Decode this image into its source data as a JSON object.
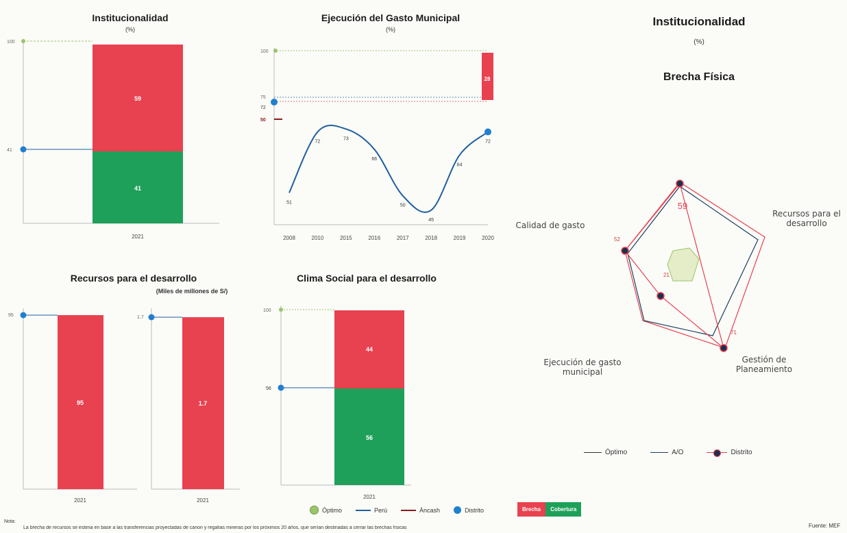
{
  "panel1": {
    "title": "Institucionalidad",
    "subtitle": "(%)",
    "brecha": 59,
    "cobertura": 41,
    "max_tick": "100",
    "distrito_tick": "41",
    "year": "2021"
  },
  "panel2": {
    "title": "Ejecución del Gasto Municipal",
    "subtitle": "(%)",
    "brecha": 28,
    "tick_max": "100",
    "tick_peru": "75",
    "tick_distrito": "72",
    "tick_ancash": "50"
  },
  "panel3": {
    "title": "Recursos para el desarrollo",
    "subtitle": "(Miles de millones de S/)",
    "left": {
      "value_label": "95",
      "tick": "95",
      "year": "2021"
    },
    "right": {
      "value_label": "1.7",
      "tick": "1.7",
      "year": "2021"
    }
  },
  "panel4": {
    "title": "Clima Social para el desarrollo",
    "brecha": 44,
    "cobertura": 56,
    "tick_max": "100",
    "tick_distrito": "56",
    "year": "2021"
  },
  "right_panel": {
    "title": "Institucionalidad",
    "subtitle": "(%)",
    "heading": "Brecha Física"
  },
  "radar": {
    "labels": {
      "top_value": "59",
      "recursos": "Recursos para el\ndesarrollo",
      "calidad": "Calidad de gasto",
      "gestion": "Gestión de\nPlaneamiento",
      "ejecucion": "Ejecución de gasto\nmunicipal",
      "v52": "52",
      "v21": "21",
      "v71": "71"
    },
    "legend": {
      "optimo": "Óptimo",
      "ajo": "A/O",
      "distrito": "Distrito"
    }
  },
  "legend": {
    "optimo": "Óptimo",
    "peru": "Perú",
    "ancash": "Áncash",
    "distrito": "Distrito",
    "brecha": "Brecha",
    "cobertura": "Cobertura"
  },
  "note": {
    "label": "Nota:",
    "text": "La brecha de recursos se estima en base a las transferencias proyectadas de canon y regalías mineras por los próximos 20 años, que serían destinadas a cerrar las brechas físicas"
  },
  "source": "Fuente: MEF",
  "colors": {
    "brecha": "#e8414f",
    "cobertura": "#1fa05a",
    "peru": "#1f5fa0",
    "ancash": "#8b1a1a",
    "distrito": "#1f7fd0",
    "optimo": "#9bc56a"
  },
  "chart_data": [
    {
      "type": "bar",
      "title": "Institucionalidad",
      "categories": [
        "2021"
      ],
      "series": [
        {
          "name": "Cobertura",
          "values": [
            41
          ]
        },
        {
          "name": "Brecha",
          "values": [
            59
          ]
        }
      ],
      "ylim": [
        0,
        100
      ]
    },
    {
      "type": "line",
      "title": "Ejecución del Gasto Municipal",
      "x": [
        "2008",
        "2010",
        "2015",
        "2016",
        "2017",
        "2018",
        "2019",
        "2020"
      ],
      "y_labels": [
        "51",
        "72",
        "73",
        "66",
        "50",
        "45",
        "64",
        "72"
      ],
      "series": [
        {
          "values": [
            51,
            72,
            73,
            66,
            50,
            45,
            64,
            72
          ]
        }
      ],
      "annotations": {
        "brecha_2020": 28
      },
      "ylim": [
        40,
        100
      ]
    },
    {
      "type": "bar",
      "title": "Recursos para el desarrollo",
      "categories": [
        "2021",
        "2021"
      ],
      "values": [
        95,
        1.7
      ]
    },
    {
      "type": "bar",
      "title": "Clima Social para el desarrollo",
      "categories": [
        "2021"
      ],
      "series": [
        {
          "name": "Cobertura",
          "values": [
            56
          ]
        },
        {
          "name": "Brecha",
          "values": [
            44
          ]
        }
      ],
      "ylim": [
        0,
        100
      ]
    }
  ]
}
